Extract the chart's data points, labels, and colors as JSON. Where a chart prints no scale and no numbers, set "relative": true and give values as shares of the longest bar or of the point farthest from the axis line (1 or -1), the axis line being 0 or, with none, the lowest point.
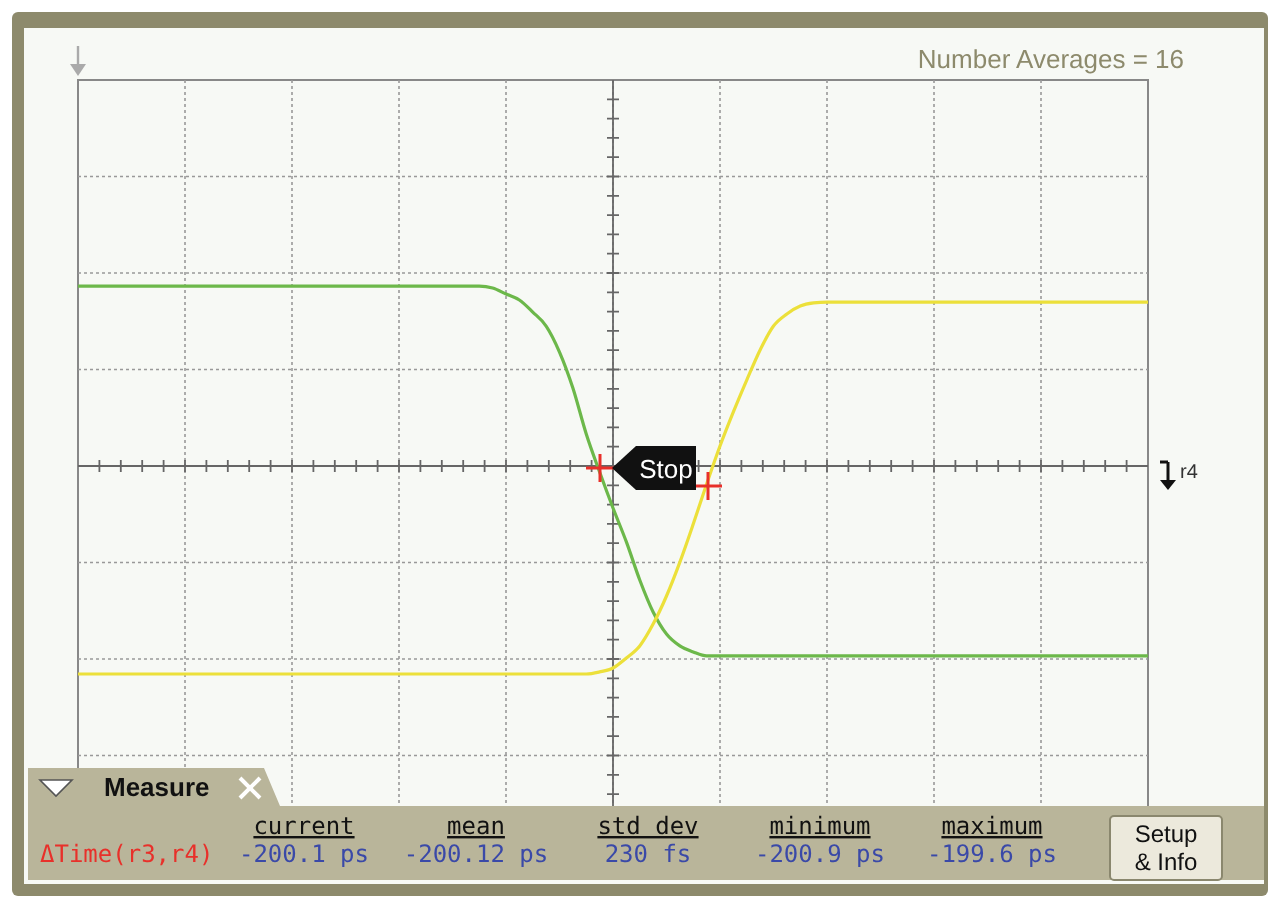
{
  "chart_data": {
    "type": "line",
    "relative": true,
    "grid": true,
    "marker": "none",
    "line_style": "solid",
    "categories": [
      null,
      null,
      null,
      null,
      null,
      null,
      null,
      null,
      null,
      null,
      null,
      null,
      null,
      null,
      null,
      null,
      null,
      null,
      null,
      null,
      null,
      null,
      null,
      null,
      null,
      null,
      null,
      null,
      null,
      null,
      null,
      null,
      null,
      null,
      null,
      null,
      null,
      null,
      null,
      null,
      null,
      null,
      null,
      null,
      null,
      null,
      null,
      null,
      null,
      null,
      null,
      null,
      null,
      null,
      null,
      null,
      null,
      null,
      null,
      null,
      null,
      null,
      null,
      null,
      null,
      null,
      null,
      null,
      null,
      null,
      null,
      null,
      null,
      null,
      null,
      null,
      null,
      null,
      null,
      null,
      null
    ],
    "series": [
      {
        "color": "#6cb84a",
        "values": [
          0.865,
          0.865,
          0.865,
          0.865,
          0.865,
          0.865,
          0.865,
          0.865,
          0.865,
          0.865,
          0.865,
          0.865,
          0.865,
          0.865,
          0.865,
          0.865,
          0.865,
          0.865,
          0.865,
          0.865,
          0.865,
          0.865,
          0.865,
          0.865,
          0.865,
          0.865,
          0.865,
          0.865,
          0.865,
          0.865,
          0.865,
          0.856,
          0.827,
          0.798,
          0.74,
          0.673,
          0.548,
          0.375,
          0.154,
          -0.029,
          -0.202,
          -0.365,
          -0.548,
          -0.702,
          -0.808,
          -0.865,
          -0.894,
          -0.913,
          -0.913,
          -0.913,
          -0.913,
          -0.913,
          -0.913,
          -0.913,
          -0.913,
          -0.913,
          -0.913,
          -0.913,
          -0.913,
          -0.913,
          -0.913,
          -0.913,
          -0.913,
          -0.913,
          -0.913,
          -0.913,
          -0.913,
          -0.913,
          -0.913,
          -0.913,
          -0.913,
          -0.913,
          -0.913,
          -0.913,
          -0.913,
          -0.913,
          -0.913,
          -0.913,
          -0.913,
          -0.913,
          -0.913
        ]
      },
      {
        "color": "#ece03a",
        "values": [
          -1,
          -1,
          -1,
          -1,
          -1,
          -1,
          -1,
          -1,
          -1,
          -1,
          -1,
          -1,
          -1,
          -1,
          -1,
          -1,
          -1,
          -1,
          -1,
          -1,
          -1,
          -1,
          -1,
          -1,
          -1,
          -1,
          -1,
          -1,
          -1,
          -1,
          -1,
          -1,
          -1,
          -1,
          -1,
          -1,
          -1,
          -1,
          -1,
          -0.99,
          -0.971,
          -0.923,
          -0.865,
          -0.76,
          -0.625,
          -0.462,
          -0.279,
          -0.087,
          0.096,
          0.26,
          0.413,
          0.558,
          0.673,
          0.731,
          0.769,
          0.784,
          0.788,
          0.788,
          0.788,
          0.788,
          0.788,
          0.788,
          0.788,
          0.788,
          0.788,
          0.788,
          0.788,
          0.788,
          0.788,
          0.788,
          0.788,
          0.788,
          0.788,
          0.788,
          0.788,
          0.788,
          0.788,
          0.788,
          0.788,
          0.788,
          0.788
        ]
      }
    ],
    "annotations": [
      "Number Averages = 16",
      "Stop",
      "r4",
      "Measure",
      "ΔTime(r3,r4)",
      "current",
      "-200.1 ps",
      "mean",
      "-200.12 ps",
      "std dev",
      "230 fs",
      "minimum",
      "-200.9 ps",
      "maximum",
      "-199.6 ps",
      "Setup & Info"
    ]
  }
}
